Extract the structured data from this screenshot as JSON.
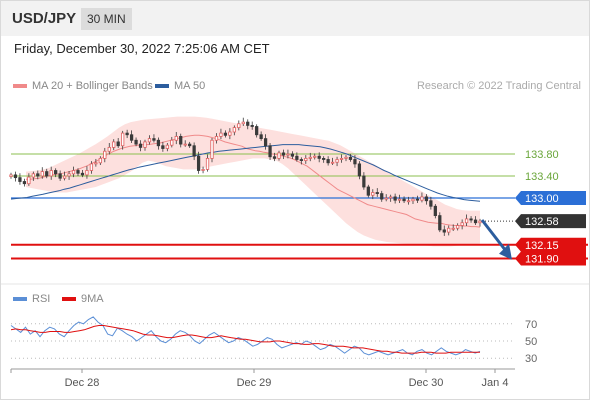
{
  "header": {
    "symbol": "USD/JPY",
    "interval": "30 MIN",
    "datetime": "Friday, December 30, 2022 7:25:06 AM CET",
    "credit": "Research © 2022 Trading Central"
  },
  "colors": {
    "candle_up": "#e06060",
    "candle_down": "#3a3a3a",
    "band_fill": "#fde0de",
    "ma20": "#f08a8a",
    "ma50": "#2c5d9e",
    "resistance": "#8bbf4f",
    "pivot": "#2b6fd6",
    "support": "#e01010",
    "rsi": "#5b8fd6",
    "rsi_ma": "#e01010",
    "arrow": "#2c5d9e",
    "last_price_bg": "#333333"
  },
  "chart_data": [
    {
      "type": "candlestick",
      "legend": [
        {
          "name": "MA 20 + Bollinger Bands",
          "color": "#f08a8a"
        },
        {
          "name": "MA 50",
          "color": "#2c5d9e"
        }
      ],
      "x_ticks": [
        "Dec 28",
        "Dec 29",
        "Dec 30",
        "Jan 4"
      ],
      "ylim": [
        131.6,
        134.6
      ],
      "levels": [
        {
          "label": "133.80",
          "value": 133.8,
          "kind": "resistance"
        },
        {
          "label": "133.40",
          "value": 133.4,
          "kind": "resistance"
        },
        {
          "label": "133.00",
          "value": 133.0,
          "kind": "pivot"
        },
        {
          "label": "132.15",
          "value": 132.15,
          "kind": "support"
        },
        {
          "label": "131.90",
          "value": 131.9,
          "kind": "support"
        }
      ],
      "last_price": {
        "label": "132.58",
        "value": 132.58
      },
      "arrow": {
        "from": 132.6,
        "to": 131.95
      },
      "close": [
        133.42,
        133.37,
        133.3,
        133.26,
        133.38,
        133.44,
        133.4,
        133.48,
        133.4,
        133.5,
        133.44,
        133.36,
        133.4,
        133.44,
        133.5,
        133.45,
        133.42,
        133.5,
        133.62,
        133.64,
        133.72,
        133.85,
        133.92,
        134.02,
        133.95,
        134.18,
        134.15,
        134.05,
        133.98,
        133.92,
        134.02,
        134.08,
        134.05,
        133.95,
        133.9,
        133.96,
        134.05,
        134.12,
        133.98,
        133.98,
        133.95,
        133.76,
        133.5,
        133.52,
        133.72,
        134.05,
        134.12,
        134.18,
        134.14,
        134.2,
        134.28,
        134.35,
        134.38,
        134.32,
        134.3,
        134.15,
        134.08,
        133.95,
        133.75,
        133.72,
        133.82,
        133.78,
        133.8,
        133.76,
        133.7,
        133.68,
        133.72,
        133.74,
        133.76,
        133.72,
        133.7,
        133.64,
        133.65,
        133.7,
        133.72,
        133.74,
        133.7,
        133.62,
        133.4,
        133.2,
        133.05,
        133.1,
        133.08,
        132.98,
        133.0,
        133.02,
        132.96,
        132.98,
        132.95,
        132.95,
        132.98,
        132.96,
        133.02,
        132.95,
        132.85,
        132.68,
        132.42,
        132.38,
        132.45,
        132.45,
        132.5,
        132.55,
        132.62,
        132.6,
        132.55,
        132.58
      ],
      "ma20": [
        133.34,
        133.34,
        133.35,
        133.36,
        133.38,
        133.4,
        133.42,
        133.43,
        133.44,
        133.46,
        133.48,
        133.5,
        133.52,
        133.55,
        133.58,
        133.62,
        133.66,
        133.7,
        133.75,
        133.8,
        133.84,
        133.87,
        133.9,
        133.92,
        133.94,
        133.95,
        133.96,
        133.97,
        133.97,
        133.98,
        133.99,
        134.0,
        134.02,
        134.04,
        134.06,
        134.08,
        134.1,
        134.12,
        134.13,
        134.14,
        134.14,
        134.13,
        134.12,
        134.1,
        134.08,
        134.05,
        134.02,
        134.0,
        133.98,
        133.96,
        133.94,
        133.9,
        133.88,
        133.86,
        133.85,
        133.83,
        133.82,
        133.8,
        133.79,
        133.77,
        133.75,
        133.73,
        133.7,
        133.66,
        133.62,
        133.58,
        133.52,
        133.46,
        133.4,
        133.34,
        133.28,
        133.22,
        133.16,
        133.12,
        133.08,
        133.04,
        133.0,
        132.96,
        132.92,
        132.88,
        132.86,
        132.84,
        132.82,
        132.8,
        132.78,
        132.76,
        132.74,
        132.72,
        132.7,
        132.66,
        132.62,
        132.6,
        132.58,
        132.56,
        132.55,
        132.54,
        132.54,
        132.52,
        132.51,
        132.5,
        132.5,
        132.49,
        132.49,
        132.48,
        132.48,
        132.47
      ],
      "ma50": [
        132.98,
        132.99,
        133.0,
        133.01,
        133.03,
        133.05,
        133.07,
        133.09,
        133.11,
        133.13,
        133.16,
        133.18,
        133.21,
        133.24,
        133.27,
        133.3,
        133.33,
        133.36,
        133.39,
        133.42,
        133.45,
        133.48,
        133.51,
        133.53,
        133.56,
        133.58,
        133.6,
        133.62,
        133.64,
        133.66,
        133.68,
        133.7,
        133.72,
        133.74,
        133.76,
        133.78,
        133.8,
        133.82,
        133.83,
        133.85,
        133.86,
        133.87,
        133.88,
        133.89,
        133.9,
        133.91,
        133.92,
        133.93,
        133.94,
        133.95,
        133.96,
        133.97,
        133.97,
        133.97,
        133.97,
        133.96,
        133.95,
        133.94,
        133.93,
        133.91,
        133.89,
        133.86,
        133.83,
        133.8,
        133.76,
        133.72,
        133.68,
        133.64,
        133.6,
        133.55,
        133.5,
        133.46,
        133.41,
        133.37,
        133.33,
        133.29,
        133.25,
        133.21,
        133.17,
        133.13,
        133.09,
        133.06,
        133.03,
        133.01,
        132.99,
        132.97,
        132.96,
        132.95,
        132.94
      ],
      "band_upper": [
        133.48,
        133.49,
        133.5,
        133.52,
        133.55,
        133.6,
        133.65,
        133.7,
        133.75,
        133.8,
        133.86,
        133.92,
        133.98,
        134.05,
        134.12,
        134.2,
        134.28,
        134.34,
        134.38,
        134.4,
        134.42,
        134.43,
        134.44,
        134.45,
        134.46,
        134.47,
        134.48,
        134.48,
        134.48,
        134.48,
        134.47,
        134.46,
        134.44,
        134.42,
        134.4,
        134.38,
        134.36,
        134.34,
        134.32,
        134.3,
        134.28,
        134.26,
        134.24,
        134.22,
        134.2,
        134.18,
        134.16,
        134.14,
        134.12,
        134.1,
        134.08,
        134.06,
        134.04,
        134.0,
        133.96,
        133.9,
        133.84,
        133.78,
        133.72,
        133.66,
        133.6,
        133.54,
        133.48,
        133.42,
        133.36,
        133.3,
        133.24,
        133.18,
        133.12,
        133.06,
        133.0,
        132.94,
        132.88,
        132.84,
        132.8,
        132.78,
        132.77,
        132.77,
        132.77
      ],
      "band_lower": [
        133.2,
        133.18,
        133.16,
        133.14,
        133.12,
        133.1,
        133.1,
        133.1,
        133.12,
        133.14,
        133.16,
        133.18,
        133.2,
        133.24,
        133.28,
        133.32,
        133.36,
        133.42,
        133.48,
        133.56,
        133.64,
        133.68,
        133.66,
        133.62,
        133.58,
        133.56,
        133.54,
        133.52,
        133.52,
        133.52,
        133.54,
        133.56,
        133.58,
        133.6,
        133.62,
        133.64,
        133.66,
        133.68,
        133.7,
        133.72,
        133.72,
        133.72,
        133.7,
        133.68,
        133.62,
        133.54,
        133.44,
        133.34,
        133.24,
        133.14,
        133.04,
        132.94,
        132.84,
        132.74,
        132.64,
        132.54,
        132.46,
        132.38,
        132.32,
        132.28,
        132.24,
        132.22,
        132.2,
        132.19,
        132.18,
        132.17,
        132.16,
        132.15,
        132.14,
        132.13,
        132.12,
        132.12,
        132.12,
        132.12,
        132.13,
        132.14,
        132.15,
        132.16,
        132.17
      ]
    },
    {
      "type": "line",
      "legend": [
        {
          "name": "RSI",
          "color": "#5b8fd6"
        },
        {
          "name": "9MA",
          "color": "#e01010"
        }
      ],
      "y_ticks": [
        70,
        50,
        30
      ],
      "ylim": [
        14,
        86
      ],
      "rsi": [
        68,
        64,
        60,
        66,
        58,
        62,
        55,
        62,
        66,
        64,
        58,
        55,
        62,
        68,
        72,
        70,
        75,
        78,
        72,
        68,
        58,
        56,
        65,
        62,
        58,
        55,
        50,
        54,
        58,
        62,
        55,
        50,
        48,
        52,
        58,
        62,
        60,
        56,
        50,
        47,
        52,
        57,
        60,
        56,
        52,
        48,
        50,
        54,
        52,
        48,
        44,
        46,
        50,
        54,
        52,
        46,
        42,
        44,
        46,
        48,
        46,
        50,
        48,
        44,
        40,
        42,
        46,
        44,
        40,
        36,
        40,
        44,
        42,
        36,
        34,
        36,
        38,
        36,
        34,
        36,
        38,
        40,
        36,
        34,
        38,
        40,
        36,
        34,
        38,
        42,
        38,
        36,
        34,
        36,
        40,
        38,
        36,
        38
      ],
      "rsi_ma": [
        63,
        64,
        63,
        63,
        62,
        61,
        60,
        60,
        61,
        61,
        61,
        60,
        60,
        61,
        62,
        63,
        65,
        67,
        68,
        68,
        67,
        66,
        65,
        64,
        63,
        62,
        60,
        58,
        57,
        57,
        56,
        55,
        54,
        54,
        55,
        56,
        57,
        57,
        56,
        55,
        54,
        54,
        55,
        56,
        55,
        54,
        53,
        52,
        52,
        51,
        50,
        49,
        49,
        49,
        50,
        50,
        49,
        48,
        47,
        47,
        46,
        46,
        47,
        47,
        46,
        45,
        44,
        44,
        44,
        43,
        42,
        42,
        42,
        41,
        40,
        39,
        38,
        38,
        37,
        37,
        36,
        36,
        36,
        36,
        37,
        37,
        37,
        36,
        36,
        36,
        37,
        37,
        37,
        37,
        37,
        37,
        37
      ]
    }
  ]
}
